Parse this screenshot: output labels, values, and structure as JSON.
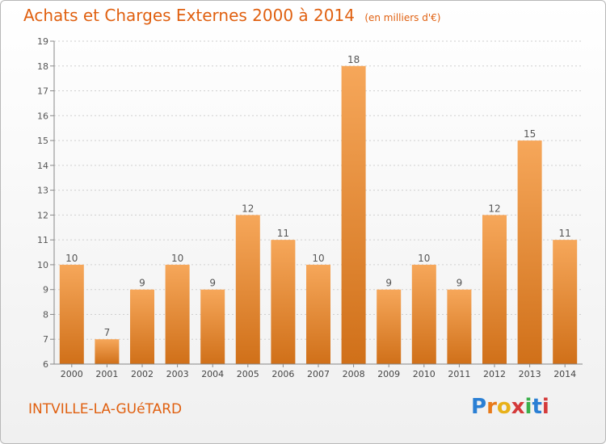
{
  "header": {
    "title": "Achats et Charges Externes 2000 à 2014",
    "subtitle": "(en milliers d'€)"
  },
  "footer": {
    "commune": "INTVILLE-LA-GUéTARD",
    "logo": "Proxiti"
  },
  "colors": {
    "accent": "#e06010",
    "bar_top": "#f6a75a",
    "bar_bottom": "#d07019"
  },
  "chart_data": {
    "type": "bar",
    "categories": [
      "2000",
      "2001",
      "2002",
      "2003",
      "2004",
      "2005",
      "2006",
      "2007",
      "2008",
      "2009",
      "2010",
      "2011",
      "2012",
      "2013",
      "2014"
    ],
    "values": [
      10,
      7,
      9,
      10,
      9,
      12,
      11,
      10,
      18,
      9,
      10,
      9,
      12,
      15,
      11
    ],
    "title": "Achats et Charges Externes 2000 à 2014",
    "xlabel": "",
    "ylabel": "",
    "ylim": [
      6,
      19
    ],
    "yticks": [
      6,
      7,
      8,
      9,
      10,
      11,
      12,
      13,
      14,
      15,
      16,
      17,
      18,
      19
    ],
    "grid": true,
    "legend": "none"
  }
}
